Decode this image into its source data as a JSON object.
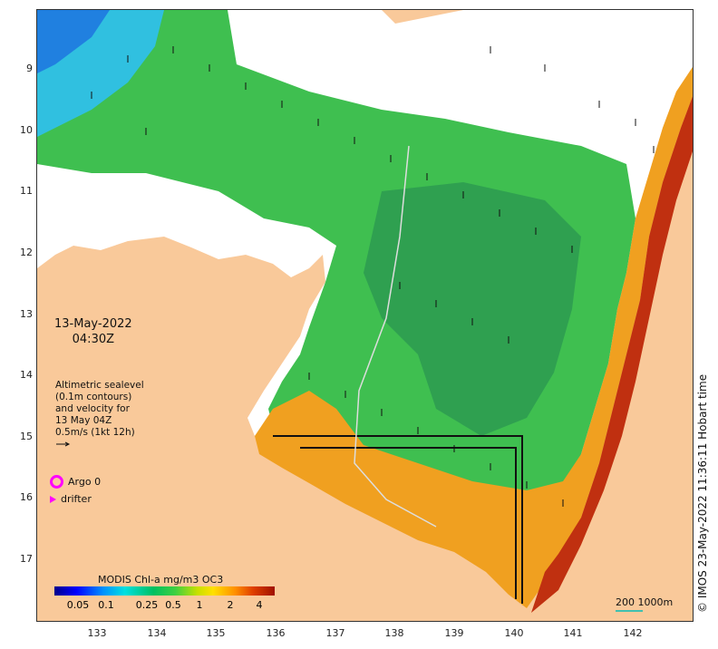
{
  "map": {
    "date": "13-May-2022",
    "time": "04:30Z",
    "altimetry_lines": [
      "Altimetric sealevel",
      "(0.1m contours)",
      "and velocity for",
      "13 May 04Z",
      "0.5m/s (1kt 12h)"
    ],
    "legend": {
      "argo_label": "Argo 0",
      "drifter_label": "drifter"
    },
    "colorbar": {
      "title": "MODIS Chl-a mg/m3 OC3",
      "ticks": [
        "0.05",
        "0.1",
        "0.25",
        "0.5",
        "1",
        "2",
        "4"
      ]
    },
    "scale_label": "200  1000m",
    "credit": "© IMOS 23-May-2022 11:36:11 Hobart time",
    "lat_labels": [
      "9",
      "10",
      "11",
      "12",
      "13",
      "14",
      "15",
      "16",
      "17"
    ],
    "lon_labels": [
      "133",
      "134",
      "135",
      "136",
      "137",
      "138",
      "139",
      "140",
      "141",
      "142"
    ],
    "colors": {
      "land": "#f9c99a",
      "cloud": "#ffffff",
      "chl_high": "#a01000",
      "chl_mid": "#40c040",
      "chl_low": "#20a0e0",
      "argo": "#ff00ff"
    }
  }
}
